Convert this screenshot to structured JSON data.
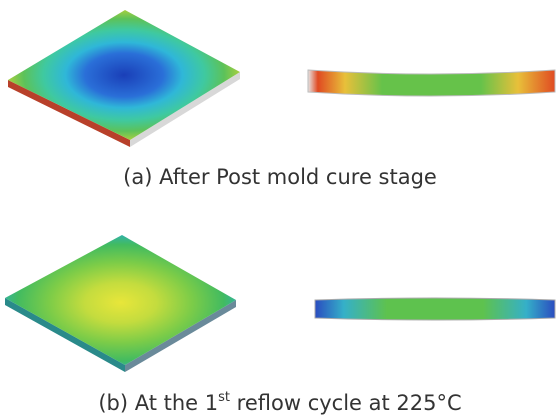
{
  "panels": [
    {
      "caption": "(a) After Post mold cure stage"
    },
    {
      "caption": {
        "before": "(b) At the 1",
        "superscript": "st",
        "after": " reflow cycle at 225°C"
      }
    }
  ]
}
